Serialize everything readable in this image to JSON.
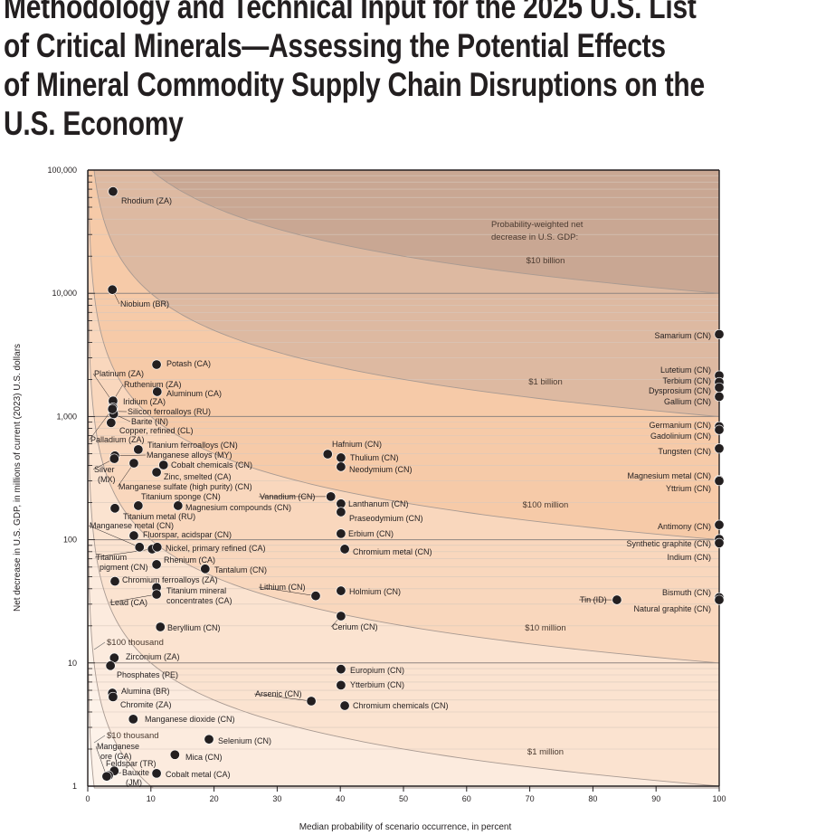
{
  "title_lines": [
    "Methodology and Technical Input for the 2025 U.S. List",
    "of Critical Minerals—Assessing the Potential Effects",
    "of Mineral Commodity Supply Chain Disruptions on the",
    "U.S. Economy"
  ],
  "chart_data": {
    "type": "scatter",
    "xlabel": "Median probability of scenario occurrence, in percent",
    "ylabel": "Net decrease in U.S. GDP, in millions of current (2023) U.S. dollars",
    "xlim": [
      0,
      100
    ],
    "ylim": [
      1,
      100000
    ],
    "yscale": "log",
    "x_ticks": [
      "0",
      "10",
      "20",
      "30",
      "40",
      "50",
      "60",
      "70",
      "80",
      "90",
      "100"
    ],
    "y_ticks": [
      "1",
      "10",
      "100",
      "1,000",
      "10,000",
      "100,000"
    ],
    "grid": "horizontal minor lines",
    "contours": {
      "title": "Probability-weighted net decrease in U.S. GDP:",
      "levels": [
        {
          "label": "$10 billion",
          "value_millions": 10000,
          "color": "#c9a793"
        },
        {
          "label": "$1 billion",
          "value_millions": 1000,
          "color": "#ddb9a1"
        },
        {
          "label": "$100 million",
          "value_millions": 100,
          "color": "#f6caa8"
        },
        {
          "label": "$10 million",
          "value_millions": 10,
          "color": "#f9d7bd"
        },
        {
          "label": "$1 million",
          "value_millions": 1,
          "color": "#fbe3d0"
        },
        {
          "label": "$100 thousand",
          "value_millions": 0.1,
          "color": "#fcebde"
        },
        {
          "label": "$10 thousand",
          "value_millions": 0.01,
          "color": "#fdf2e9"
        }
      ],
      "lowest_color": "#fef8f3"
    },
    "points": [
      {
        "name": "Rhodium (ZA)",
        "x": 4.0,
        "y": 67000
      },
      {
        "name": "Niobium (BR)",
        "x": 3.9,
        "y": 10700
      },
      {
        "name": "Potash (CA)",
        "x": 10.9,
        "y": 2640
      },
      {
        "name": "Aluminum (CA)",
        "x": 11.0,
        "y": 1590
      },
      {
        "name": "Platinum (ZA)",
        "x": 4.0,
        "y": 1300
      },
      {
        "name": "Ruthenium (ZA)",
        "x": 4.0,
        "y": 1340
      },
      {
        "name": "Iridium (ZA)",
        "x": 4.0,
        "y": 1180
      },
      {
        "name": "Silicon ferroalloys (RU)",
        "x": 4.0,
        "y": 1100
      },
      {
        "name": "Barite (IN)",
        "x": 4.1,
        "y": 1050
      },
      {
        "name": "Copper, refined (CL)",
        "x": 3.7,
        "y": 890
      },
      {
        "name": "Palladium (ZA)",
        "x": 3.9,
        "y": 1150
      },
      {
        "name": "Titanium ferroalloys (CN)",
        "x": 8.0,
        "y": 540
      },
      {
        "name": "Manganese alloys (MY)",
        "x": 4.3,
        "y": 480
      },
      {
        "name": "Silver (MX)",
        "x": 4.2,
        "y": 455
      },
      {
        "name": "Manganese sulfate (high purity) (CN)",
        "x": 7.3,
        "y": 418
      },
      {
        "name": "Cobalt chemicals (CN)",
        "x": 12.0,
        "y": 404
      },
      {
        "name": "Zinc, smelted (CA)",
        "x": 10.9,
        "y": 353
      },
      {
        "name": "Titanium sponge (CN)",
        "x": 8.0,
        "y": 189
      },
      {
        "name": "Titanium metal (RU)",
        "x": 4.3,
        "y": 180
      },
      {
        "name": "Magnesium compounds (CN)",
        "x": 14.3,
        "y": 189
      },
      {
        "name": "Manganese metal (CN)",
        "x": 8.2,
        "y": 87
      },
      {
        "name": "Fluorspar, acidspar (CN)",
        "x": 7.3,
        "y": 108
      },
      {
        "name": "Titanium pigment (CN)",
        "x": 10.2,
        "y": 84
      },
      {
        "name": "Nickel, primary refined (CA)",
        "x": 11.0,
        "y": 87
      },
      {
        "name": "Rhenium (CA)",
        "x": 10.9,
        "y": 63
      },
      {
        "name": "Tantalum (CN)",
        "x": 18.6,
        "y": 58
      },
      {
        "name": "Chromium ferroalloys (ZA)",
        "x": 4.3,
        "y": 46
      },
      {
        "name": "Titanium mineral concentrates (CA)",
        "x": 10.9,
        "y": 41
      },
      {
        "name": "Lead (CA)",
        "x": 10.9,
        "y": 36
      },
      {
        "name": "Beryllium (CN)",
        "x": 11.5,
        "y": 19.6
      },
      {
        "name": "Lithium (CN)",
        "x": 36.1,
        "y": 35
      },
      {
        "name": "Hafnium (CN)",
        "x": 38.0,
        "y": 495
      },
      {
        "name": "Thulium (CN)",
        "x": 40.1,
        "y": 463
      },
      {
        "name": "Neodymium (CN)",
        "x": 40.1,
        "y": 391
      },
      {
        "name": "Vanadium (CN)",
        "x": 38.5,
        "y": 224
      },
      {
        "name": "Lanthanum (CN)",
        "x": 40.1,
        "y": 196
      },
      {
        "name": "Praseodymium (CN)",
        "x": 40.1,
        "y": 168
      },
      {
        "name": "Erbium (CN)",
        "x": 40.1,
        "y": 112
      },
      {
        "name": "Chromium metal (CN)",
        "x": 40.7,
        "y": 84
      },
      {
        "name": "Holmium (CN)",
        "x": 40.1,
        "y": 38.5
      },
      {
        "name": "Cerium (CN)",
        "x": 40.1,
        "y": 24
      },
      {
        "name": "Europium (CN)",
        "x": 40.1,
        "y": 8.9
      },
      {
        "name": "Ytterbium (CN)",
        "x": 40.1,
        "y": 6.6
      },
      {
        "name": "Arsenic (CN)",
        "x": 35.4,
        "y": 4.9
      },
      {
        "name": "Chromium chemicals (CN)",
        "x": 40.7,
        "y": 4.5
      },
      {
        "name": "Zirconium (ZA)",
        "x": 4.2,
        "y": 11
      },
      {
        "name": "Phosphates (PE)",
        "x": 3.6,
        "y": 9.5
      },
      {
        "name": "Alumina (BR)",
        "x": 3.9,
        "y": 5.7
      },
      {
        "name": "Chromite (ZA)",
        "x": 4.0,
        "y": 5.3
      },
      {
        "name": "Manganese dioxide (CN)",
        "x": 7.2,
        "y": 3.5
      },
      {
        "name": "Selenium (CN)",
        "x": 19.2,
        "y": 2.4
      },
      {
        "name": "Mica (CN)",
        "x": 13.8,
        "y": 1.8
      },
      {
        "name": "Cobalt metal (CA)",
        "x": 10.9,
        "y": 1.27
      },
      {
        "name": "Feldspar (TR)",
        "x": 4.2,
        "y": 1.33
      },
      {
        "name": "Bauxite (JM)",
        "x": 3.3,
        "y": 1.22
      },
      {
        "name": "Manganese ore (GA)",
        "x": 3.0,
        "y": 1.2
      },
      {
        "name": "Tin (ID)",
        "x": 83.8,
        "y": 32.5
      },
      {
        "name": "Samarium (CN)",
        "x": 100,
        "y": 4650
      },
      {
        "name": "Lutetium (CN)",
        "x": 100,
        "y": 2150
      },
      {
        "name": "Terbium (CN)",
        "x": 100,
        "y": 1900
      },
      {
        "name": "Dysprosium (CN)",
        "x": 100,
        "y": 1720
      },
      {
        "name": "Gallium (CN)",
        "x": 100,
        "y": 1450
      },
      {
        "name": "Germanium (CN)",
        "x": 100,
        "y": 830
      },
      {
        "name": "Gadolinium (CN)",
        "x": 100,
        "y": 780
      },
      {
        "name": "Tungsten (CN)",
        "x": 100,
        "y": 550
      },
      {
        "name": "Magnesium metal (CN)",
        "x": 100,
        "y": 305
      },
      {
        "name": "Yttrium (CN)",
        "x": 100,
        "y": 300
      },
      {
        "name": "Antimony (CN)",
        "x": 100,
        "y": 132
      },
      {
        "name": "Synthetic graphite (CN)",
        "x": 100,
        "y": 101
      },
      {
        "name": "Indium (CN)",
        "x": 100,
        "y": 94
      },
      {
        "name": "Bismuth (CN)",
        "x": 100,
        "y": 34
      },
      {
        "name": "Natural graphite (CN)",
        "x": 100,
        "y": 32.5
      }
    ]
  }
}
